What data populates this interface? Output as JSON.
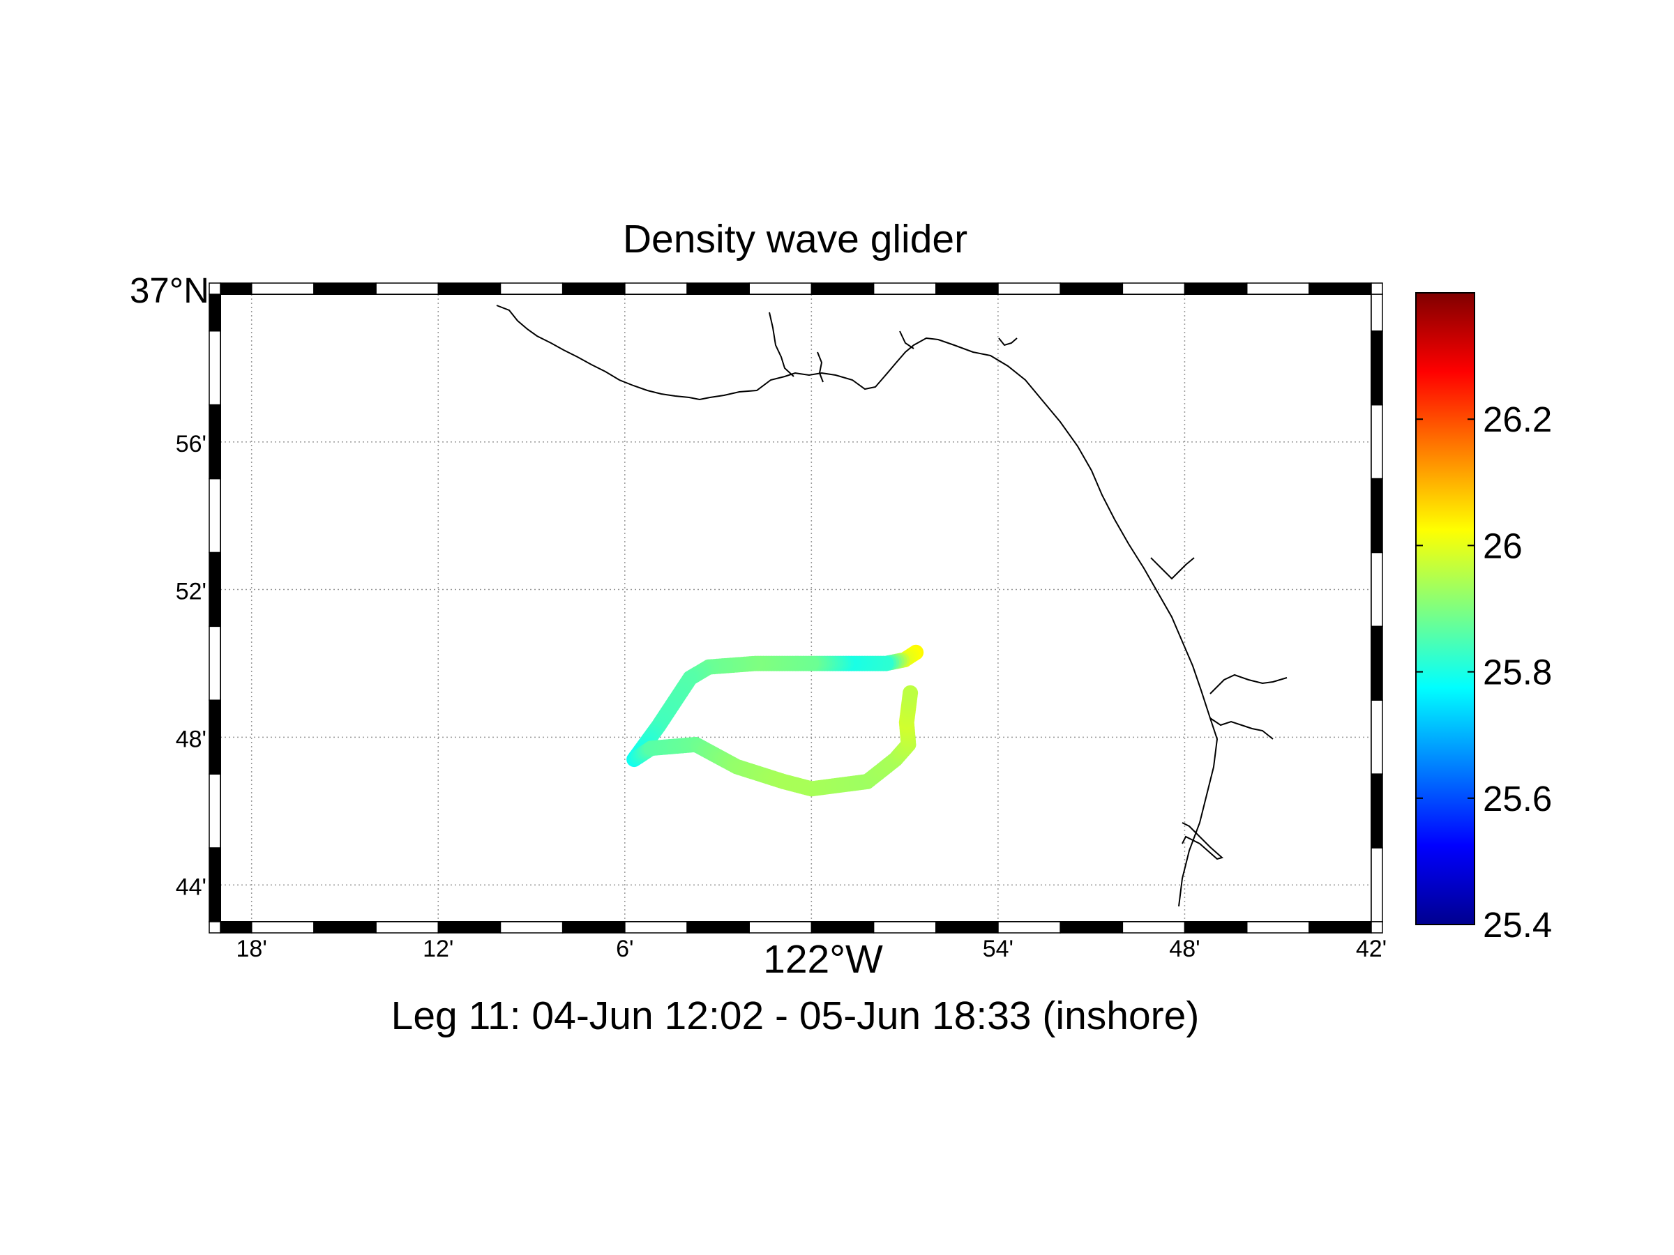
{
  "chart_data": {
    "type": "scatter",
    "title": "Density wave glider",
    "xlabel": "122°W",
    "subtitle": "Leg 11: 04-Jun 12:02 - 05-Jun 18:33 (inshore)",
    "map_extent": {
      "lon_west": -122.3167,
      "lon_east": -121.7,
      "lat_south": 36.7167,
      "lat_north": 37.0
    },
    "lon_ticks": [
      {
        "lon": -122.3,
        "label": "18'"
      },
      {
        "lon": -122.2,
        "label": "12'"
      },
      {
        "lon": -122.1,
        "label": "6'"
      },
      {
        "lon": -122.0,
        "label": ""
      },
      {
        "lon": -121.9,
        "label": "54'"
      },
      {
        "lon": -121.8,
        "label": "48'"
      },
      {
        "lon": -121.7,
        "label": "42'"
      }
    ],
    "lat_ticks": [
      {
        "lat": 37.0,
        "label": "37°N"
      },
      {
        "lat": 36.9333,
        "label": "56'"
      },
      {
        "lat": 36.8667,
        "label": "52'"
      },
      {
        "lat": 36.8,
        "label": "48'"
      },
      {
        "lat": 36.7333,
        "label": "44'"
      }
    ],
    "grid": true,
    "colorbar": {
      "colormap": "jet",
      "min": 25.4,
      "max": 26.4,
      "ticks": [
        25.4,
        25.6,
        25.8,
        26.0,
        26.2
      ],
      "tick_labels": [
        "25.4",
        "25.6",
        "25.8",
        "26",
        "26.2"
      ],
      "placement": "right"
    },
    "track": [
      {
        "lon": -121.944,
        "lat": 36.8383,
        "density": 26.03
      },
      {
        "lon": -121.95,
        "lat": 36.835,
        "density": 26.0
      },
      {
        "lon": -121.96,
        "lat": 36.8333,
        "density": 25.82
      },
      {
        "lon": -121.98,
        "lat": 36.8333,
        "density": 25.8
      },
      {
        "lon": -122.0,
        "lat": 36.8333,
        "density": 25.88
      },
      {
        "lon": -122.03,
        "lat": 36.8333,
        "density": 25.9
      },
      {
        "lon": -122.055,
        "lat": 36.8317,
        "density": 25.88
      },
      {
        "lon": -122.065,
        "lat": 36.8267,
        "density": 25.86
      },
      {
        "lon": -122.082,
        "lat": 36.805,
        "density": 25.84
      },
      {
        "lon": -122.095,
        "lat": 36.79,
        "density": 25.79
      },
      {
        "lon": -122.086,
        "lat": 36.795,
        "density": 25.86
      },
      {
        "lon": -122.062,
        "lat": 36.7967,
        "density": 25.88
      },
      {
        "lon": -122.04,
        "lat": 36.7867,
        "density": 25.92
      },
      {
        "lon": -122.015,
        "lat": 36.78,
        "density": 25.94
      },
      {
        "lon": -122.0,
        "lat": 36.7767,
        "density": 25.94
      },
      {
        "lon": -121.97,
        "lat": 36.78,
        "density": 25.93
      },
      {
        "lon": -121.955,
        "lat": 36.79,
        "density": 25.94
      },
      {
        "lon": -121.948,
        "lat": 36.7967,
        "density": 25.96
      },
      {
        "lon": -121.949,
        "lat": 36.8067,
        "density": 25.98
      },
      {
        "lon": -121.947,
        "lat": 36.82,
        "density": 25.96
      }
    ]
  }
}
